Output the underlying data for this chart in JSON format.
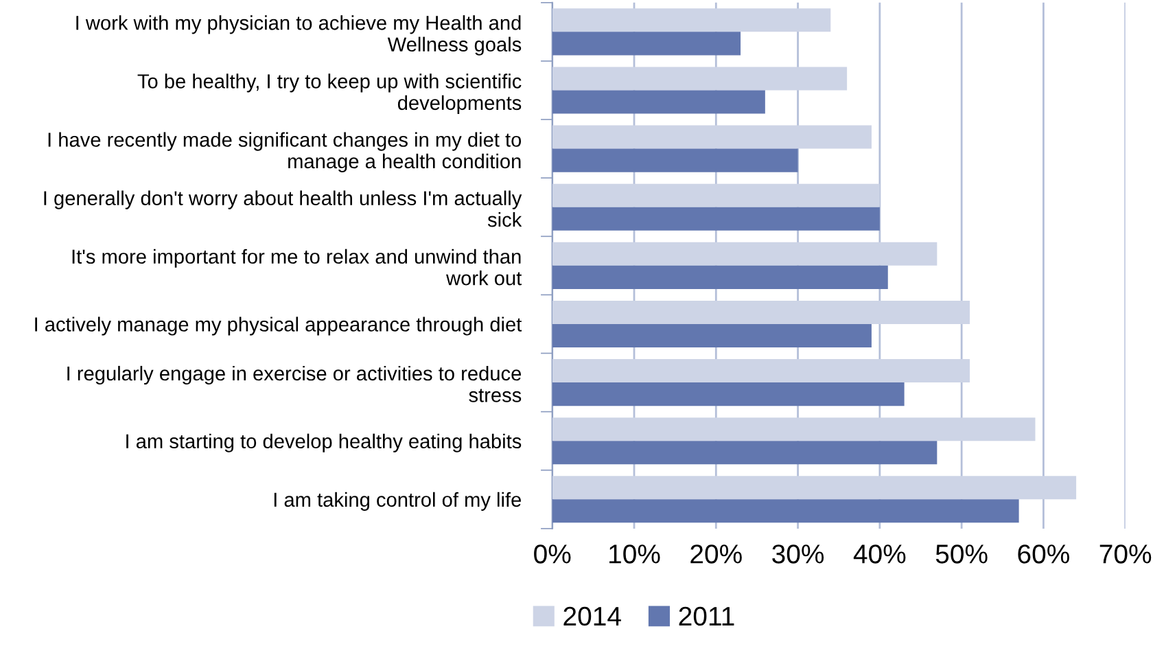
{
  "chart_data": {
    "type": "bar",
    "orientation": "horizontal",
    "categories": [
      "I work with my physician to achieve my Health and\nWellness goals",
      "To be healthy, I try to keep up with scientific\ndevelopments",
      "I have recently made significant changes in my diet to\nmanage a health condition",
      "I generally don't worry about health unless I'm actually\nsick",
      "It's more important for me to relax and unwind than\nwork out",
      "I actively manage my physical appearance through diet",
      "I regularly engage in exercise or activities to reduce\nstress",
      "I am starting to develop healthy eating habits",
      "I am taking control of my life"
    ],
    "series": [
      {
        "name": "2014",
        "color": "#cdd4e6",
        "values": [
          34,
          36,
          39,
          40,
          47,
          51,
          51,
          59,
          64
        ]
      },
      {
        "name": "2011",
        "color": "#6277af",
        "values": [
          23,
          26,
          30,
          40,
          41,
          39,
          43,
          47,
          57
        ]
      }
    ],
    "xlim": [
      0,
      70
    ],
    "xticks": [
      {
        "value": 0,
        "label": "0%"
      },
      {
        "value": 10,
        "label": "10%"
      },
      {
        "value": 20,
        "label": "20%"
      },
      {
        "value": 30,
        "label": "30%"
      },
      {
        "value": 40,
        "label": "40%"
      },
      {
        "value": 50,
        "label": "50%"
      },
      {
        "value": 60,
        "label": "60%"
      },
      {
        "value": 70,
        "label": "70%"
      }
    ],
    "grid": "x",
    "legend": "bottom"
  }
}
